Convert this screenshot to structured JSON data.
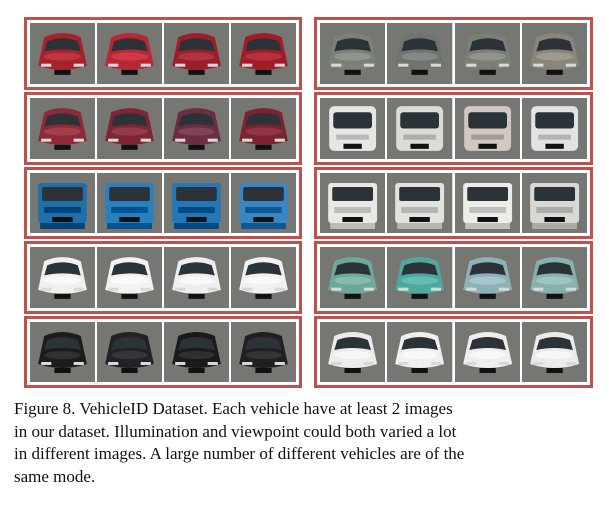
{
  "figure": {
    "caption_lines": [
      "Figure 8. VehicleID Dataset. Each vehicle have at least 2 images",
      "in our dataset. Illumination and viewpoint could both varied a lot",
      "in different images. A large number of different vehicles are of the",
      "same mode."
    ]
  },
  "groups": [
    {
      "tiles": [
        {
          "color": "#a8222e",
          "type": "sedan"
        },
        {
          "color": "#b82733",
          "type": "sedan"
        },
        {
          "color": "#9a1f2a",
          "type": "sedan"
        },
        {
          "color": "#a01d27",
          "type": "sedan"
        }
      ]
    },
    {
      "tiles": [
        {
          "color": "#7a8178",
          "type": "sedan"
        },
        {
          "color": "#6f746e",
          "type": "sedan"
        },
        {
          "color": "#7c7f76",
          "type": "sedan"
        },
        {
          "color": "#8a857a",
          "type": "sedan"
        }
      ]
    },
    {
      "tiles": [
        {
          "color": "#8e2a36",
          "type": "sedan"
        },
        {
          "color": "#7e2633",
          "type": "sedan"
        },
        {
          "color": "#6a2e40",
          "type": "sedan"
        },
        {
          "color": "#7c2230",
          "type": "suv"
        }
      ]
    },
    {
      "tiles": [
        {
          "color": "#e6e6e6",
          "type": "van"
        },
        {
          "color": "#dcdcd6",
          "type": "van"
        },
        {
          "color": "#d2c8c2",
          "type": "van"
        },
        {
          "color": "#e0e2e4",
          "type": "van"
        }
      ]
    },
    {
      "tiles": [
        {
          "color": "#1f6fa8",
          "type": "truck"
        },
        {
          "color": "#2a7fbf",
          "type": "truck"
        },
        {
          "color": "#2477b4",
          "type": "truck"
        },
        {
          "color": "#3a86c2",
          "type": "truck"
        }
      ]
    },
    {
      "tiles": [
        {
          "color": "#e8e8e4",
          "type": "truck"
        },
        {
          "color": "#e2e2de",
          "type": "truck"
        },
        {
          "color": "#ecece8",
          "type": "truck"
        },
        {
          "color": "#d8d8d4",
          "type": "truck"
        }
      ]
    },
    {
      "tiles": [
        {
          "color": "#f0f0f0",
          "type": "sedan"
        },
        {
          "color": "#f2f2f2",
          "type": "sedan"
        },
        {
          "color": "#eeeeee",
          "type": "sedan"
        },
        {
          "color": "#f1f1f1",
          "type": "sedan"
        }
      ]
    },
    {
      "tiles": [
        {
          "color": "#6fa79a",
          "type": "sedan"
        },
        {
          "color": "#4fa89e",
          "type": "sedan"
        },
        {
          "color": "#8fb0b8",
          "type": "sedan"
        },
        {
          "color": "#88b0ac",
          "type": "sedan"
        }
      ]
    },
    {
      "tiles": [
        {
          "color": "#1c1c1e",
          "type": "sedan"
        },
        {
          "color": "#222226",
          "type": "sedan"
        },
        {
          "color": "#1a1a1c",
          "type": "sedan"
        },
        {
          "color": "#202022",
          "type": "sedan"
        }
      ]
    },
    {
      "tiles": [
        {
          "color": "#ececec",
          "type": "sedan"
        },
        {
          "color": "#f0f0f0",
          "type": "sedan"
        },
        {
          "color": "#eeeeee",
          "type": "sedan"
        },
        {
          "color": "#ebebeb",
          "type": "sedan"
        }
      ]
    }
  ]
}
